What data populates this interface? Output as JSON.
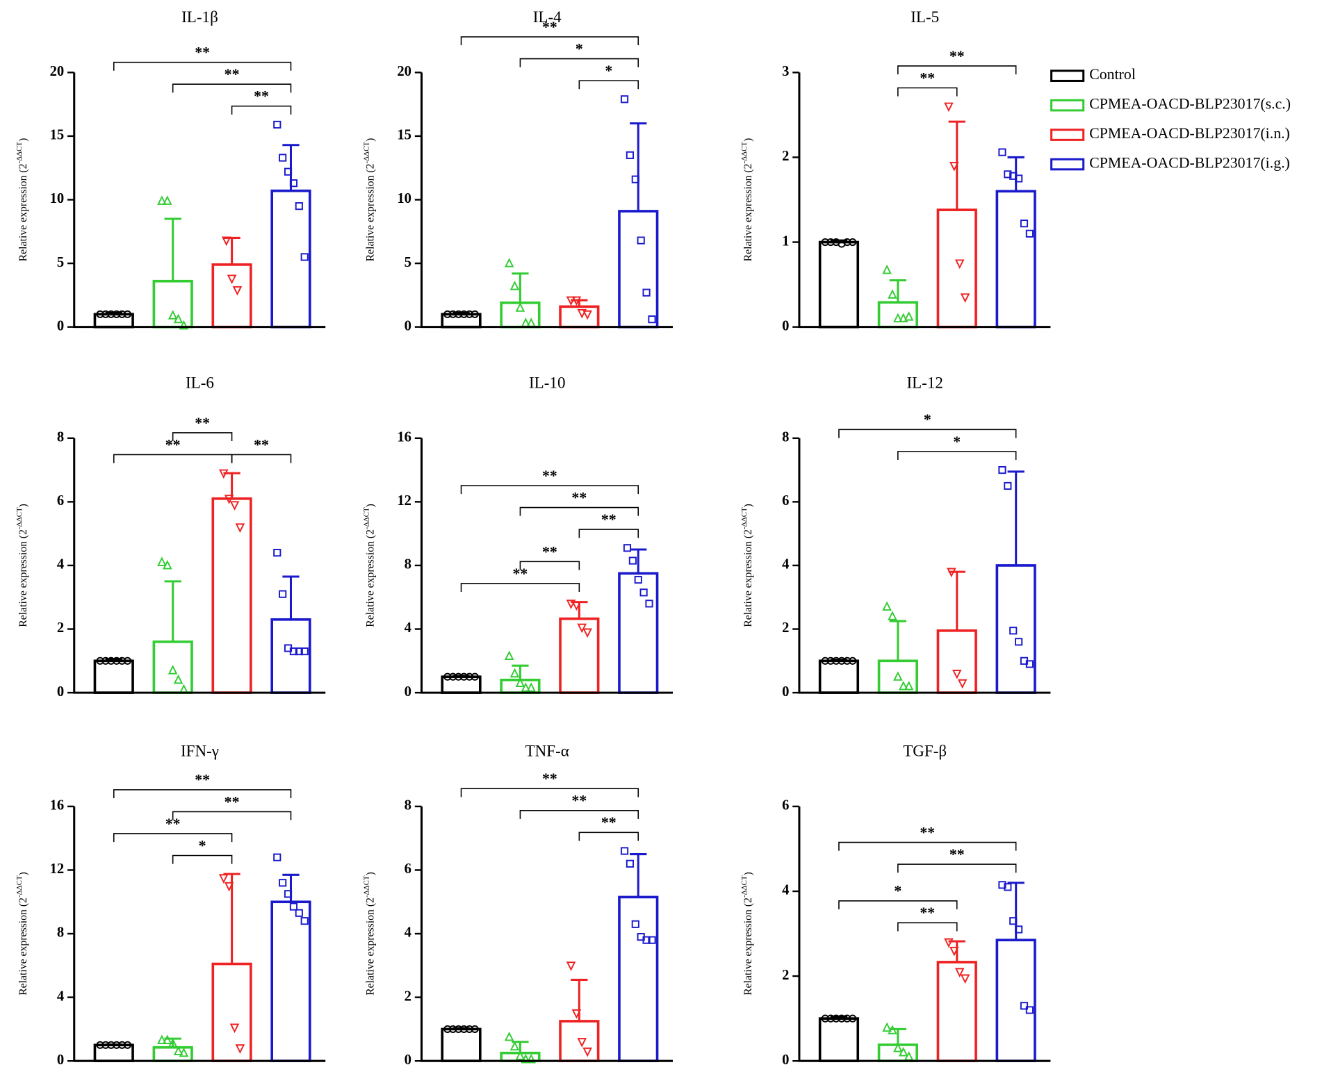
{
  "legend": [
    {
      "name": "Control",
      "color": "#000000",
      "marker": "circle"
    },
    {
      "name": "CPMEA-OACD-BLP23017(s.c.)",
      "color": "#33cc33",
      "marker": "triangle"
    },
    {
      "name": "CPMEA-OACD-BLP23017(i.n.)",
      "color": "#ee2222",
      "marker": "triangle-down"
    },
    {
      "name": "CPMEA-OACD-BLP23017(i.g.)",
      "color": "#1a1acc",
      "marker": "square"
    }
  ],
  "chart_data": [
    {
      "type": "bar",
      "title": "IL-1β",
      "ylabel": {
        "text": "Relative expression (2",
        "sup": "-ΔΔCT",
        "close": ")"
      },
      "ylim": [
        0,
        20
      ],
      "yticks": [
        0,
        5,
        10,
        15,
        20
      ],
      "values": [
        1.0,
        3.6,
        4.9,
        10.7
      ],
      "errors": [
        0.1,
        4.9,
        2.1,
        3.6
      ],
      "points": [
        [
          1,
          1,
          1,
          1,
          1,
          1
        ],
        [
          9.9,
          9.9,
          0.9,
          0.6,
          0.1
        ],
        [
          6.8,
          3.8,
          2.9
        ],
        [
          15.9,
          13.3,
          12.2,
          11.3,
          9.5,
          5.5
        ]
      ],
      "brackets": [
        {
          "from": 2,
          "to": 3,
          "label": "**"
        },
        {
          "from": 1,
          "to": 3,
          "label": "**"
        },
        {
          "from": 0,
          "to": 3,
          "label": "**"
        }
      ]
    },
    {
      "type": "bar",
      "title": "IL-4",
      "ylabel": {
        "text": "Relative expression (2",
        "sup": "-ΔΔCT",
        "close": ")"
      },
      "ylim": [
        0,
        20
      ],
      "yticks": [
        0,
        5,
        10,
        15,
        20
      ],
      "values": [
        1.0,
        1.9,
        1.6,
        9.1
      ],
      "errors": [
        0.1,
        2.3,
        0.5,
        6.9
      ],
      "points": [
        [
          1,
          1,
          1,
          1,
          1,
          1
        ],
        [
          5.0,
          3.2,
          1.5,
          0.3,
          0.3
        ],
        [
          2.1,
          2.1,
          1.1,
          1.0
        ],
        [
          17.9,
          13.5,
          11.6,
          6.8,
          2.7,
          0.6
        ]
      ],
      "brackets": [
        {
          "from": 2,
          "to": 3,
          "label": "*"
        },
        {
          "from": 1,
          "to": 3,
          "label": "*"
        },
        {
          "from": 0,
          "to": 3,
          "label": "**"
        }
      ]
    },
    {
      "type": "bar",
      "title": "IL-5",
      "ylabel": {
        "text": "Relative expression (2",
        "sup": "-ΔΔCT",
        "close": ")"
      },
      "ylim": [
        0,
        3
      ],
      "yticks": [
        0,
        1,
        2,
        3
      ],
      "values": [
        1.0,
        0.29,
        1.38,
        1.6
      ],
      "errors": [
        0.02,
        0.26,
        1.04,
        0.4
      ],
      "points": [
        [
          1,
          1,
          1,
          0.98,
          1,
          1
        ],
        [
          0.67,
          0.38,
          0.1,
          0.1,
          0.12
        ],
        [
          2.6,
          1.9,
          0.75,
          0.35
        ],
        [
          2.06,
          1.8,
          1.78,
          1.75,
          1.22,
          1.1
        ]
      ],
      "brackets": [
        {
          "from": 1,
          "to": 2,
          "label": "**"
        },
        {
          "from": 1,
          "to": 3,
          "label": "**"
        }
      ]
    },
    {
      "type": "bar",
      "title": "IL-6",
      "ylabel": {
        "text": "Relative expression (2",
        "sup": "-ΔΔCT",
        "close": ")"
      },
      "ylim": [
        0,
        8
      ],
      "yticks": [
        0,
        2,
        4,
        6,
        8
      ],
      "values": [
        1.0,
        1.6,
        6.1,
        2.3
      ],
      "errors": [
        0.05,
        1.9,
        0.8,
        1.35
      ],
      "points": [
        [
          1,
          1,
          1,
          1,
          1,
          1
        ],
        [
          4.1,
          4.0,
          0.7,
          0.4,
          0.1
        ],
        [
          6.9,
          6.1,
          5.9,
          5.2
        ],
        [
          4.4,
          3.1,
          1.4,
          1.3,
          1.3,
          1.3
        ]
      ],
      "brackets": [
        {
          "from": 0,
          "to": 2,
          "label": "**"
        },
        {
          "from": 2,
          "to": 3,
          "label": "**"
        },
        {
          "from": 1,
          "to": 2,
          "label": "**"
        }
      ]
    },
    {
      "type": "bar",
      "title": "IL-10",
      "ylabel": {
        "text": "Relative expression (2",
        "sup": "-ΔΔCT",
        "close": ")"
      },
      "ylim": [
        0,
        16
      ],
      "yticks": [
        0,
        4,
        8,
        12,
        16
      ],
      "values": [
        1.0,
        0.8,
        4.65,
        7.5
      ],
      "errors": [
        0.05,
        0.9,
        1.05,
        1.5
      ],
      "points": [
        [
          1,
          1,
          1,
          1,
          1,
          1
        ],
        [
          2.3,
          1.2,
          0.6,
          0.3,
          0.3
        ],
        [
          5.6,
          5.5,
          4.1,
          3.8
        ],
        [
          9.1,
          8.3,
          7.1,
          6.3,
          5.6
        ]
      ],
      "brackets": [
        {
          "from": 0,
          "to": 2,
          "label": "**"
        },
        {
          "from": 1,
          "to": 2,
          "label": "**"
        },
        {
          "from": 2,
          "to": 3,
          "label": "**"
        },
        {
          "from": 1,
          "to": 3,
          "label": "**"
        },
        {
          "from": 0,
          "to": 3,
          "label": "**"
        }
      ]
    },
    {
      "type": "bar",
      "title": "IL-12",
      "ylabel": {
        "text": "Relative expression (2",
        "sup": "-ΔΔCT",
        "close": ")"
      },
      "ylim": [
        0,
        8
      ],
      "yticks": [
        0,
        2,
        4,
        6,
        8
      ],
      "values": [
        1.0,
        1.0,
        1.95,
        4.0
      ],
      "errors": [
        0.03,
        1.25,
        1.85,
        2.95
      ],
      "points": [
        [
          1,
          1,
          1,
          1,
          1,
          1
        ],
        [
          2.7,
          2.4,
          0.5,
          0.2,
          0.2
        ],
        [
          3.8,
          0.6,
          0.3
        ],
        [
          7.0,
          6.5,
          1.95,
          1.6,
          1.0,
          0.9
        ]
      ],
      "brackets": [
        {
          "from": 1,
          "to": 3,
          "label": "*"
        },
        {
          "from": 0,
          "to": 3,
          "label": "*"
        }
      ]
    },
    {
      "type": "bar",
      "title": "IFN-γ",
      "ylabel": {
        "text": "Relative expression (2",
        "sup": "-ΔΔCT",
        "close": ")"
      },
      "ylim": [
        0,
        16
      ],
      "yticks": [
        0,
        4,
        8,
        12,
        16
      ],
      "values": [
        1.0,
        0.85,
        6.1,
        10.0
      ],
      "errors": [
        0.03,
        0.55,
        5.65,
        1.7
      ],
      "points": [
        [
          1,
          1,
          1,
          1,
          1,
          1
        ],
        [
          1.3,
          1.3,
          1.1,
          0.6,
          0.5
        ],
        [
          11.5,
          11.0,
          2.1,
          0.8
        ],
        [
          12.8,
          11.2,
          10.5,
          9.7,
          9.3,
          8.8
        ]
      ],
      "brackets": [
        {
          "from": 1,
          "to": 2,
          "label": "*"
        },
        {
          "from": 0,
          "to": 2,
          "label": "**"
        },
        {
          "from": 1,
          "to": 3,
          "label": "**"
        },
        {
          "from": 0,
          "to": 3,
          "label": "**"
        }
      ]
    },
    {
      "type": "bar",
      "title": "TNF-α",
      "ylabel": {
        "text": "Relative expression (2",
        "sup": "-ΔΔCT",
        "close": ")"
      },
      "ylim": [
        0,
        8
      ],
      "yticks": [
        0,
        2,
        4,
        6,
        8
      ],
      "values": [
        1.0,
        0.25,
        1.25,
        5.15
      ],
      "errors": [
        0.03,
        0.35,
        1.3,
        1.35
      ],
      "points": [
        [
          1,
          1,
          1,
          1,
          1,
          1
        ],
        [
          0.75,
          0.45,
          0.15,
          0.05,
          0.05
        ],
        [
          3.0,
          1.5,
          0.6,
          0.3
        ],
        [
          6.6,
          6.2,
          4.3,
          3.9,
          3.8,
          3.8
        ]
      ],
      "brackets": [
        {
          "from": 2,
          "to": 3,
          "label": "**"
        },
        {
          "from": 1,
          "to": 3,
          "label": "**"
        },
        {
          "from": 0,
          "to": 3,
          "label": "**"
        }
      ]
    },
    {
      "type": "bar",
      "title": "TGF-β",
      "ylabel": {
        "text": "Relative expression (2",
        "sup": "-ΔΔCT",
        "close": ")"
      },
      "ylim": [
        0,
        6
      ],
      "yticks": [
        0,
        2,
        4,
        6
      ],
      "values": [
        1.0,
        0.38,
        2.33,
        2.85
      ],
      "errors": [
        0.05,
        0.37,
        0.49,
        1.35
      ],
      "points": [
        [
          1,
          1,
          1,
          1,
          1,
          1
        ],
        [
          0.78,
          0.72,
          0.3,
          0.2,
          0.1
        ],
        [
          2.8,
          2.6,
          2.1,
          1.95
        ],
        [
          4.15,
          4.1,
          3.3,
          3.1,
          1.3,
          1.2
        ]
      ],
      "brackets": [
        {
          "from": 1,
          "to": 2,
          "label": "**"
        },
        {
          "from": 0,
          "to": 2,
          "label": "*"
        },
        {
          "from": 1,
          "to": 3,
          "label": "**"
        },
        {
          "from": 0,
          "to": 3,
          "label": "**"
        }
      ]
    }
  ]
}
